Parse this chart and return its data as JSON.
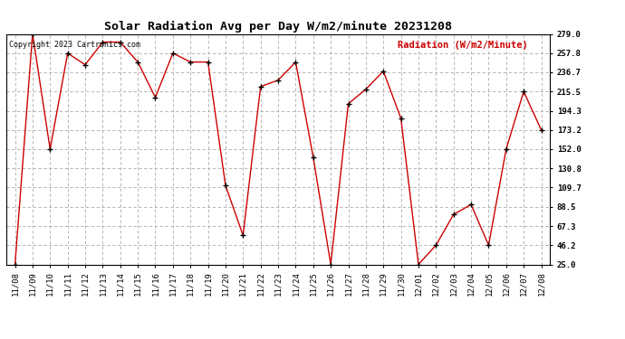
{
  "title": "Solar Radiation Avg per Day W/m2/minute 20231208",
  "copyright": "Copyright 2023 Cartronics.com",
  "legend_label": "Radiation (W/m2/Minute)",
  "dates": [
    "11/08",
    "11/09",
    "11/10",
    "11/11",
    "11/12",
    "11/13",
    "11/14",
    "11/15",
    "11/16",
    "11/17",
    "11/18",
    "11/19",
    "11/20",
    "11/21",
    "11/22",
    "11/23",
    "11/24",
    "11/25",
    "11/26",
    "11/27",
    "11/28",
    "11/29",
    "11/30",
    "12/01",
    "12/02",
    "12/03",
    "12/04",
    "12/05",
    "12/06",
    "12/07",
    "12/08"
  ],
  "values": [
    25.0,
    279.0,
    152.0,
    257.8,
    245.0,
    270.0,
    270.0,
    248.0,
    209.0,
    257.8,
    248.0,
    248.0,
    112.0,
    57.0,
    221.0,
    228.0,
    248.0,
    143.0,
    25.0,
    202.0,
    218.0,
    238.0,
    186.0,
    25.0,
    46.2,
    80.0,
    91.0,
    46.2,
    152.0,
    215.5,
    173.2
  ],
  "yticks": [
    25.0,
    46.2,
    67.3,
    88.5,
    109.7,
    130.8,
    152.0,
    173.2,
    194.3,
    215.5,
    236.7,
    257.8,
    279.0
  ],
  "ylim_min": 25.0,
  "ylim_max": 279.0,
  "line_color": "#cc0000",
  "marker_color": "#000000",
  "title_color": "#000000",
  "copyright_color": "#000000",
  "legend_color": "#cc0000",
  "bg_color": "#ffffff",
  "grid_color": "#aaaaaa",
  "title_fontsize": 9.5,
  "axis_tick_fontsize": 6.5,
  "copyright_fontsize": 6.0,
  "legend_fontsize": 7.5
}
